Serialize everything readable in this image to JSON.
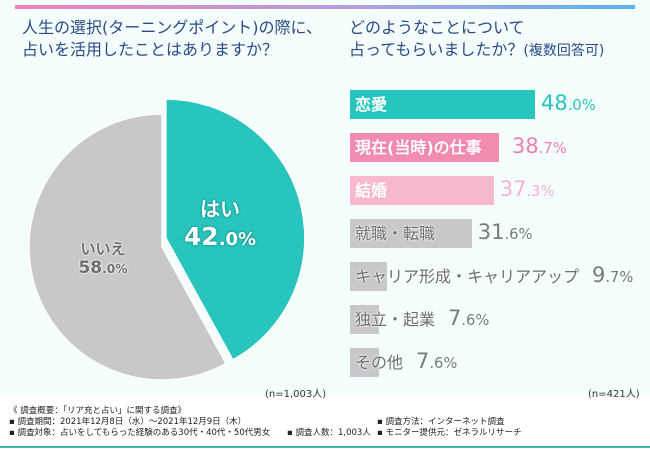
{
  "left_title": [
    "人生の選択(ターニングポイント)の際に、",
    "占いを活用したことはありますか？"
  ],
  "right_title": [
    "どのようなことについて",
    "占ってもらいましたか？"
  ],
  "right_title_suffix": "(複数回答可)",
  "left_n": "(n=1,003人)",
  "right_n": "(n=421人)",
  "pie_labels": {
    "yes_label": "はい",
    "yes_int": "42",
    "yes_dec": ".0%",
    "no_label": "いいえ",
    "no_int": "58",
    "no_dec": ".0%"
  },
  "bar_labels": [
    {
      "int": "48",
      "dec": ".0%"
    },
    {
      "int": "38",
      "dec": ".7%"
    },
    {
      "int": "37",
      "dec": ".3%"
    },
    {
      "int": "31",
      "dec": ".6%"
    },
    {
      "int": "9",
      "dec": ".7%"
    },
    {
      "int": "7",
      "dec": ".6%"
    },
    {
      "int": "7",
      "dec": ".6%"
    }
  ],
  "chart_data": [
    {
      "type": "pie",
      "title": "人生の選択(ターニングポイント)の際に、占いを活用したことはありますか？",
      "categories": [
        "はい",
        "いいえ"
      ],
      "values": [
        42.0,
        58.0
      ],
      "colors": [
        "#27c5be",
        "#c8c8c8"
      ],
      "n": "n=1,003人"
    },
    {
      "type": "bar",
      "orientation": "horizontal",
      "title": "どのようなことについて占ってもらいましたか？(複数回答可)",
      "categories": [
        "恋愛",
        "現在(当時)の仕事",
        "結婚",
        "就職・転職",
        "キャリア形成・キャリアアップ",
        "独立・起業",
        "その他"
      ],
      "values": [
        48.0,
        38.7,
        37.3,
        31.6,
        9.7,
        7.6,
        7.6
      ],
      "unit": "%",
      "colors": [
        "#27c5be",
        "#f28cb1",
        "#f8b9cf",
        "#c8c8c8",
        "#c8c8c8",
        "#c8c8c8",
        "#c8c8c8"
      ],
      "value_colors": [
        "#27c5be",
        "#f080aa",
        "#f8b2ca",
        "#7a7a7a",
        "#7a7a7a",
        "#7a7a7a",
        "#7a7a7a"
      ],
      "n": "n=421人"
    }
  ],
  "footer": {
    "heading": "《 調査概要：「リア充と占い」に関する調査》",
    "period": "▪ 調査期間：2021年12月8日（水）～2021年12月9日（木）",
    "method": "▪ 調査方法：インターネット調査",
    "target": "▪ 調査対象：占いをしてもらった経験のある30代・40代・50代男女",
    "count": "▪ 調査人数：1,003人",
    "provider": "▪ モニター提供元：ゼネラルリサーチ"
  }
}
